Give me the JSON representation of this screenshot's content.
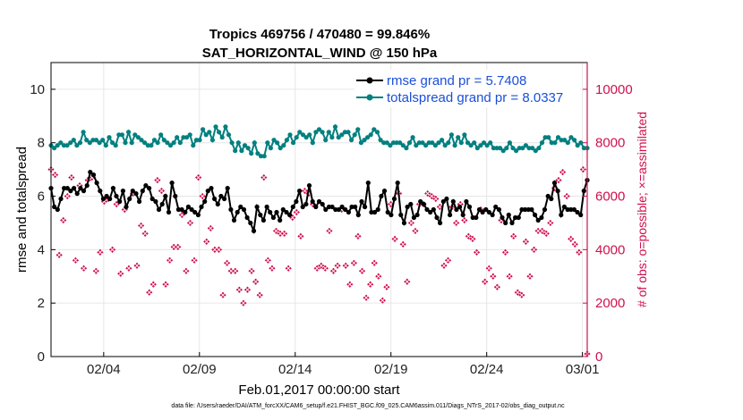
{
  "chart_data": {
    "type": "line",
    "title": "Tropics 469756 / 470480 = 99.846%",
    "subtitle": "SAT_HORIZONTAL_WIND @ 150 hPa",
    "xlabel": "Feb.01,2017 00:00:00 start",
    "ylabel": "rmse and totalspread",
    "ylabel_right": "# of obs: o=possible; ×=assimilated",
    "footer": "data file: /Users/raeder/DAI/ATM_forcXX/CAM6_setup/f.e21.FHIST_BGC.f09_025.CAM6assim.011/Diags_NTrS_2017-02/obs_diag_output.nc",
    "xlim": [
      1,
      29
    ],
    "ylim": [
      0,
      11
    ],
    "ylim_right": [
      0,
      11000
    ],
    "x_ticks": [
      {
        "value": 3.75,
        "label": "02/04"
      },
      {
        "value": 8.75,
        "label": "02/09"
      },
      {
        "value": 13.75,
        "label": "02/14"
      },
      {
        "value": 18.75,
        "label": "02/19"
      },
      {
        "value": 23.75,
        "label": "02/24"
      },
      {
        "value": 28.75,
        "label": "03/01"
      }
    ],
    "y_ticks": [
      0,
      2,
      4,
      6,
      8,
      10
    ],
    "y_ticks_right": [
      0,
      2000,
      4000,
      6000,
      8000,
      10000
    ],
    "grid": true,
    "legend_position": "top-right",
    "series": [
      {
        "name": "rmse",
        "legend": "rmse grand pr = 5.7408",
        "color": "#000000",
        "axis": "left",
        "values": [
          6.3,
          5.6,
          5.5,
          5.9,
          6.3,
          6.3,
          6.2,
          6.3,
          6.1,
          6.3,
          6.2,
          6.4,
          6.9,
          6.8,
          6.5,
          6.2,
          5.9,
          6.0,
          5.9,
          6.3,
          6.0,
          5.8,
          6.2,
          5.6,
          5.9,
          6.2,
          6.1,
          5.8,
          6.2,
          6.4,
          6.3,
          5.9,
          5.8,
          5.5,
          5.7,
          6.0,
          5.4,
          6.5,
          6.0,
          5.5,
          5.5,
          5.4,
          5.6,
          5.5,
          5.4,
          5.3,
          5.6,
          5.8,
          6.2,
          6.3,
          5.9,
          5.7,
          6.0,
          5.9,
          6.3,
          5.5,
          5.1,
          5.4,
          5.6,
          5.5,
          5.2,
          5.0,
          4.7,
          5.6,
          5.3,
          5.1,
          5.6,
          5.4,
          5.2,
          5.4,
          5.1,
          5.5,
          5.4,
          5.3,
          5.6,
          5.8,
          6.2,
          5.6,
          5.7,
          6.4,
          5.8,
          5.6,
          5.8,
          5.7,
          5.5,
          5.6,
          5.6,
          5.5,
          5.5,
          5.6,
          5.5,
          5.4,
          5.6,
          5.6,
          5.3,
          5.8,
          5.6,
          6.5,
          5.4,
          5.4,
          5.5,
          6.0,
          6.2,
          5.4,
          5.3,
          5.9,
          6.5,
          5.3,
          5.0,
          5.6,
          5.7,
          5.2,
          5.3,
          5.8,
          5.7,
          5.5,
          5.4,
          5.5,
          5.2,
          5.0,
          5.8,
          5.9,
          5.3,
          5.8,
          5.5,
          5.6,
          5.3,
          5.8,
          5.6,
          5.2,
          5.2,
          5.5,
          5.4,
          5.5,
          5.4,
          5.3,
          5.6,
          5.5,
          5.2,
          5.0,
          5.3,
          5.0,
          5.2,
          5.2,
          5.5,
          5.5,
          5.5,
          5.5,
          5.3,
          5.1,
          5.2,
          5.5,
          6.0,
          5.9,
          6.5,
          6.2,
          5.3,
          5.6,
          5.5,
          5.5,
          5.5,
          5.4,
          5.3,
          6.2,
          6.6
        ]
      },
      {
        "name": "totalspread",
        "legend": "totalspread grand pr = 8.0337",
        "color": "#00807f",
        "axis": "left",
        "values": [
          7.9,
          7.8,
          7.9,
          8.0,
          7.9,
          7.9,
          8.0,
          8.1,
          7.9,
          8.0,
          8.4,
          8.1,
          8.0,
          8.1,
          8.1,
          8.0,
          8.1,
          7.9,
          8.2,
          8.0,
          7.9,
          8.3,
          8.3,
          8.0,
          8.4,
          8.0,
          8.3,
          8.2,
          8.1,
          8.0,
          7.9,
          7.9,
          8.1,
          8.0,
          8.3,
          8.1,
          8.0,
          7.9,
          8.0,
          8.2,
          8.0,
          8.2,
          8.2,
          8.3,
          7.9,
          8.1,
          8.1,
          8.5,
          8.3,
          8.4,
          8.1,
          8.6,
          8.4,
          8.2,
          8.6,
          8.3,
          8.0,
          7.7,
          8.0,
          7.7,
          7.9,
          7.8,
          7.6,
          8.0,
          7.6,
          7.5,
          7.5,
          8.0,
          7.8,
          8.1,
          8.0,
          7.8,
          7.9,
          8.1,
          8.3,
          8.0,
          8.2,
          8.4,
          8.3,
          8.2,
          8.3,
          8.0,
          8.4,
          8.5,
          8.4,
          8.1,
          8.4,
          8.2,
          8.6,
          8.2,
          8.3,
          8.4,
          8.4,
          8.1,
          8.3,
          8.5,
          8.0,
          8.1,
          8.2,
          8.3,
          8.5,
          8.4,
          8.1,
          8.0,
          8.0,
          7.9,
          8.0,
          8.0,
          8.0,
          7.9,
          7.8,
          8.0,
          8.2,
          7.9,
          8.0,
          8.0,
          7.9,
          8.0,
          8.0,
          7.9,
          8.0,
          8.1,
          7.9,
          8.0,
          8.3,
          7.9,
          8.2,
          8.0,
          8.3,
          8.0,
          7.9,
          8.0,
          7.8,
          7.9,
          8.0,
          7.9,
          8.0,
          7.8,
          7.8,
          7.8,
          7.7,
          7.8,
          8.0,
          7.8,
          7.7,
          7.8,
          7.8,
          7.9,
          7.8,
          7.8,
          7.7,
          7.8,
          8.0,
          8.2,
          8.2,
          8.0,
          8.0,
          8.2,
          8.1,
          8.1,
          8.0,
          8.2,
          8.1,
          7.9,
          8.0,
          7.8,
          7.8
        ]
      }
    ],
    "obs_possible_color": "#d0104c",
    "obs_assimilated": [
      7000,
      6800,
      3800,
      5100,
      6000,
      6700,
      3600,
      6400,
      3300,
      6600,
      6700,
      3200,
      3900,
      5800,
      5900,
      4000,
      5700,
      3100,
      5500,
      3300,
      6100,
      3400,
      4900,
      4600,
      2400,
      2700,
      6600,
      6200,
      2700,
      3600,
      4100,
      4100,
      5300,
      3200,
      5000,
      3600,
      6700,
      6000,
      4300,
      4800,
      4000,
      4000,
      2300,
      3500,
      3200,
      3200,
      2500,
      2000,
      2500,
      3200,
      2800,
      2300,
      6700,
      3600,
      3300,
      4700,
      4600,
      4600,
      3300,
      5200,
      5400,
      4500,
      6200,
      6100,
      5700,
      3300,
      3400,
      3300,
      4700,
      3200,
      3400,
      5500,
      3400,
      2700,
      3500,
      4500,
      3200,
      2200,
      2700,
      3500,
      3000,
      2100,
      2600,
      5700,
      4400,
      6100,
      4200,
      2800,
      5000,
      4700,
      5700,
      5700,
      6100,
      6000,
      5900,
      5600,
      3400,
      3600,
      5600,
      5000,
      5700,
      5100,
      4500,
      4400,
      3900,
      5500,
      2800,
      3300,
      3000,
      2600,
      5100,
      3900,
      3000,
      4500,
      2400,
      2300,
      4300,
      3000,
      4000,
      4700,
      4700,
      4600,
      5000,
      6300,
      6600,
      6900,
      6000,
      4400,
      4200,
      3900,
      7000,
      100
    ],
    "obs_possible_total": 470480,
    "obs_assimilated_total": 469756
  }
}
